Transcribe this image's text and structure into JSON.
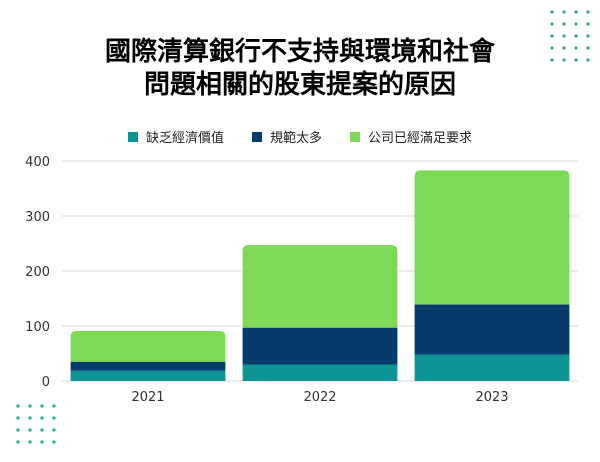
{
  "chart_data": {
    "type": "bar",
    "stacked": true,
    "title_lines": [
      "國際清算銀行不支持與環境和社會",
      "問題相關的股東提案的原因"
    ],
    "categories": [
      "2021",
      "2022",
      "2023"
    ],
    "series": [
      {
        "name": "缺乏經濟價值",
        "values": [
          19,
          30,
          48
        ],
        "color": "#0e9495"
      },
      {
        "name": "規範太多",
        "values": [
          16,
          67,
          91
        ],
        "color": "#073b6b"
      },
      {
        "name": "公司已經滿足要求",
        "values": [
          56,
          150,
          244
        ],
        "color": "#7ed957"
      }
    ],
    "ylim": [
      0,
      400
    ],
    "yticks": [
      0,
      100,
      200,
      300,
      400
    ],
    "grid": true,
    "legend_position": "top"
  },
  "colors": {
    "grid": "#d9d9d9",
    "dots": "#2aa88a"
  }
}
